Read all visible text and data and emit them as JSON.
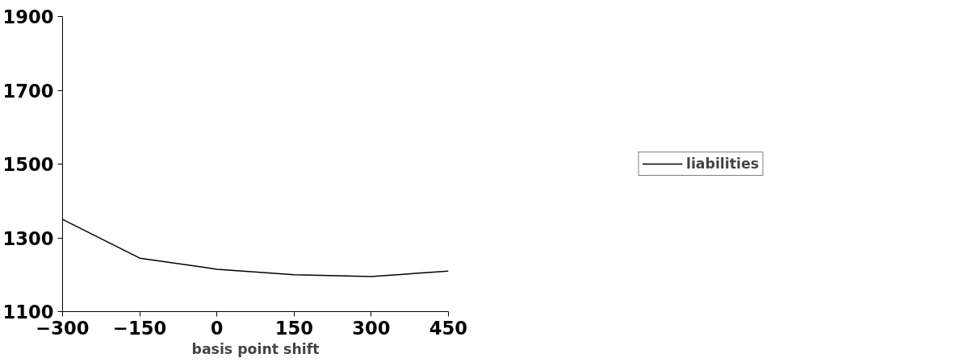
{
  "chart_data": {
    "type": "line",
    "xlabel": "basis point shift",
    "x": [
      -300,
      -150,
      0,
      150,
      300,
      450
    ],
    "series": [
      {
        "name": "liabilities",
        "color": "#000000",
        "values": [
          1350,
          1245,
          1215,
          1200,
          1195,
          1210
        ]
      }
    ],
    "xlim": [
      -300,
      450
    ],
    "xticks": [
      -300,
      -150,
      0,
      150,
      300,
      450
    ],
    "ylim": [
      1100,
      1900
    ],
    "yticks": [
      1100,
      1300,
      1500,
      1700,
      1900
    ],
    "grid": false,
    "legend": "right",
    "marker": "none",
    "line_style": "solid"
  }
}
